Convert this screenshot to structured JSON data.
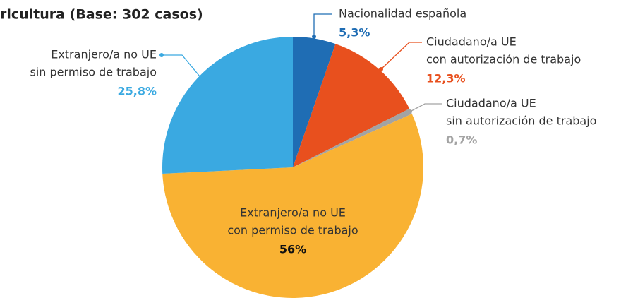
{
  "chart_data": {
    "type": "pie",
    "title": "ricultura (Base: 302 casos)",
    "categories": [
      [
        "Nacionalidad española"
      ],
      [
        "Ciudadano/a UE",
        "con autorización de trabajo"
      ],
      [
        "Ciudadano/a UE",
        "sin autorización de trabajo"
      ],
      [
        "Extranjero/a no UE",
        "con permiso de trabajo"
      ],
      [
        "Extranjero/a no UE",
        "sin permiso de trabajo"
      ]
    ],
    "values": [
      5.3,
      12.3,
      0.7,
      56,
      25.8
    ],
    "value_labels": [
      "5,3%",
      "12,3%",
      "0,7%",
      "56%",
      "25,8%"
    ],
    "colors": [
      "#1f6db4",
      "#e8501e",
      "#a3a3a3",
      "#f9b233",
      "#3aa9e1"
    ]
  }
}
